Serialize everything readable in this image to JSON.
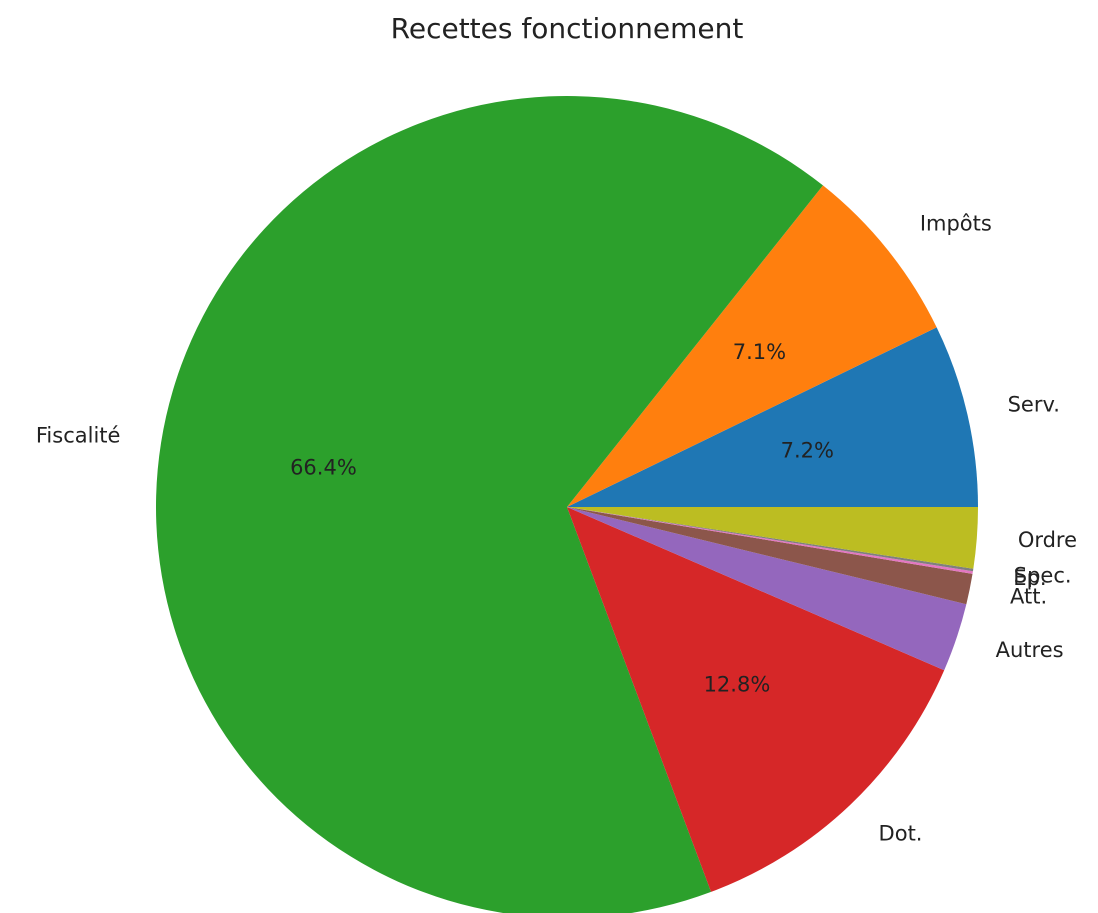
{
  "chart_data": {
    "type": "pie",
    "title": "Recettes fonctionnement",
    "categories": [
      "Serv.",
      "Impôts",
      "Fiscalité",
      "Dot.",
      "Autres",
      "Att.",
      "Ep.",
      "Spec.",
      "Ordre"
    ],
    "values": [
      7.2,
      7.1,
      66.4,
      12.8,
      2.7,
      1.2,
      0.1,
      0.1,
      2.4
    ],
    "value_labels": [
      "7.2%",
      "7.1%",
      "66.4%",
      "12.8%",
      null,
      null,
      null,
      null,
      null
    ],
    "colors": [
      "#1f77b4",
      "#ff7f0e",
      "#2ca02c",
      "#d62728",
      "#9467bd",
      "#8c564b",
      "#e377c2",
      "#7f7f7f",
      "#bcbd22"
    ]
  }
}
